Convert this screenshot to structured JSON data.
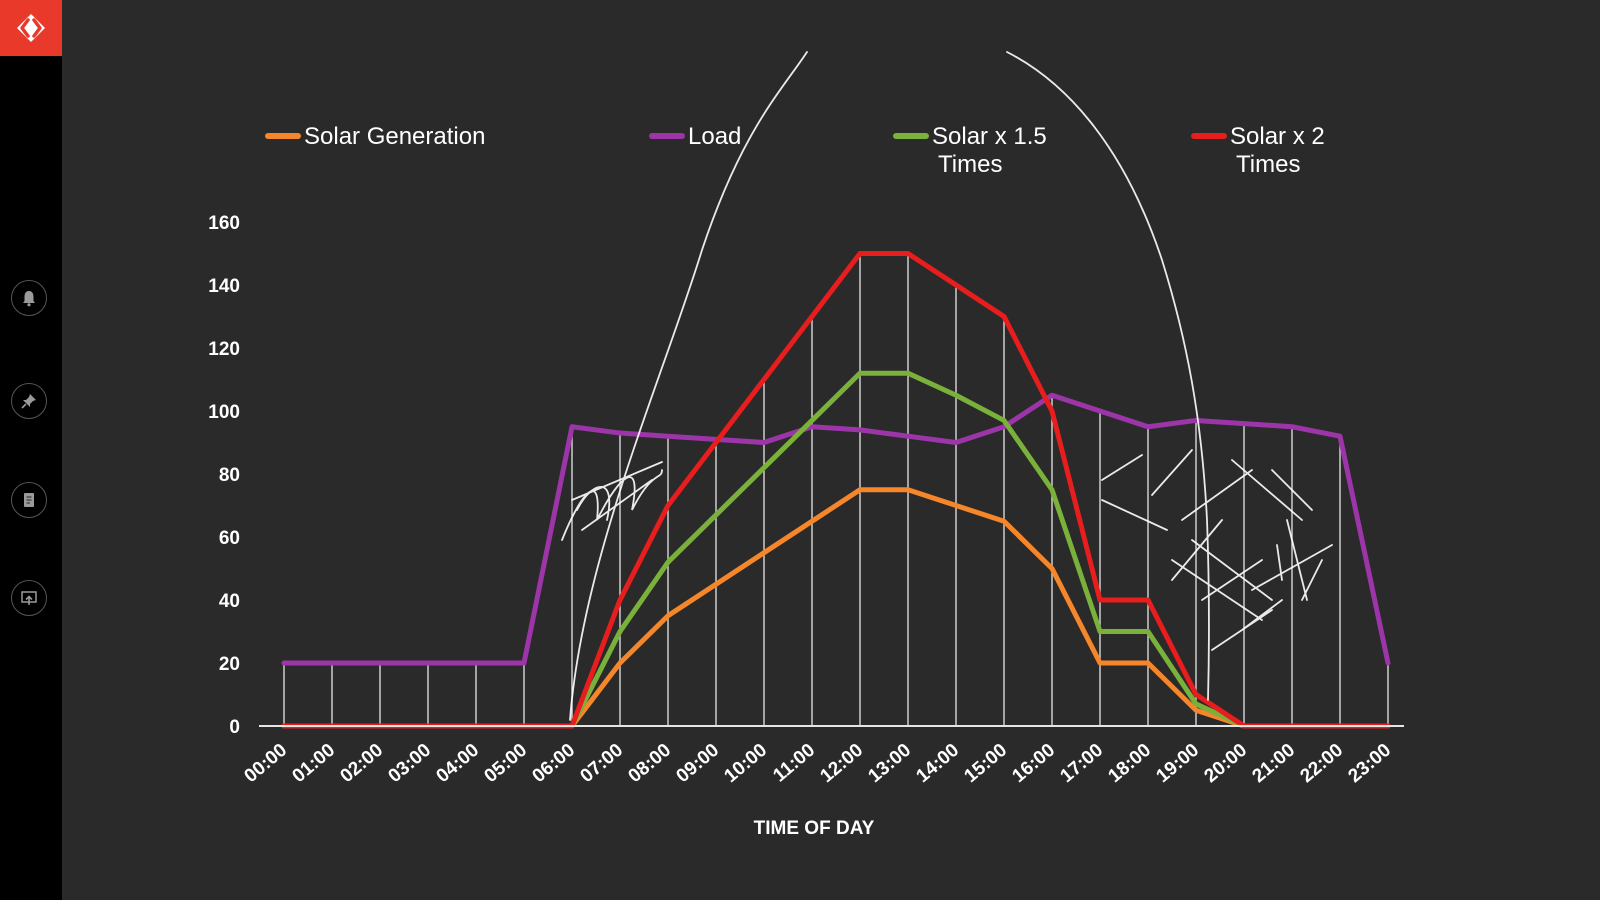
{
  "sidebar": {
    "items": [
      {
        "name": "notifications",
        "icon": "bell-icon"
      },
      {
        "name": "pin",
        "icon": "pin-icon"
      },
      {
        "name": "notes",
        "icon": "notebook-icon"
      },
      {
        "name": "present",
        "icon": "screen-share-icon"
      }
    ],
    "logo_color": "#e8392a"
  },
  "chart_data": {
    "type": "line",
    "title": "",
    "xlabel": "TIME OF DAY",
    "ylabel": "",
    "ylim": [
      0,
      160
    ],
    "yticks": [
      0,
      20,
      40,
      60,
      80,
      100,
      120,
      140,
      160
    ],
    "grid": "vertical",
    "legend_position": "top",
    "categories": [
      "00:00",
      "01:00",
      "02:00",
      "03:00",
      "04:00",
      "05:00",
      "06:00",
      "07:00",
      "08:00",
      "09:00",
      "10:00",
      "11:00",
      "12:00",
      "13:00",
      "14:00",
      "15:00",
      "16:00",
      "17:00",
      "18:00",
      "19:00",
      "20:00",
      "21:00",
      "22:00",
      "23:00"
    ],
    "series": [
      {
        "name": "Solar Generation",
        "color": "#f5862a",
        "values": [
          0,
          0,
          0,
          0,
          0,
          0,
          0,
          20,
          35,
          45,
          55,
          65,
          75,
          75,
          70,
          65,
          50,
          20,
          20,
          5,
          0,
          0,
          0,
          0
        ]
      },
      {
        "name": "Load",
        "color": "#9c35a8",
        "values": [
          20,
          20,
          20,
          20,
          20,
          20,
          95,
          93,
          92,
          91,
          90,
          95,
          94,
          92,
          90,
          95,
          105,
          100,
          95,
          97,
          96,
          95,
          92,
          20
        ]
      },
      {
        "name": "Solar x 1.5 Times",
        "color": "#7ab13a",
        "values": [
          0,
          0,
          0,
          0,
          0,
          0,
          0,
          30,
          52,
          67,
          82,
          97,
          112,
          112,
          105,
          97,
          75,
          30,
          30,
          7,
          0,
          0,
          0,
          0
        ]
      },
      {
        "name": "Solar x 2 Times",
        "color": "#e81d1d",
        "values": [
          0,
          0,
          0,
          0,
          0,
          0,
          0,
          40,
          70,
          90,
          110,
          130,
          150,
          150,
          140,
          130,
          100,
          40,
          40,
          10,
          0,
          0,
          0,
          0
        ]
      }
    ]
  }
}
